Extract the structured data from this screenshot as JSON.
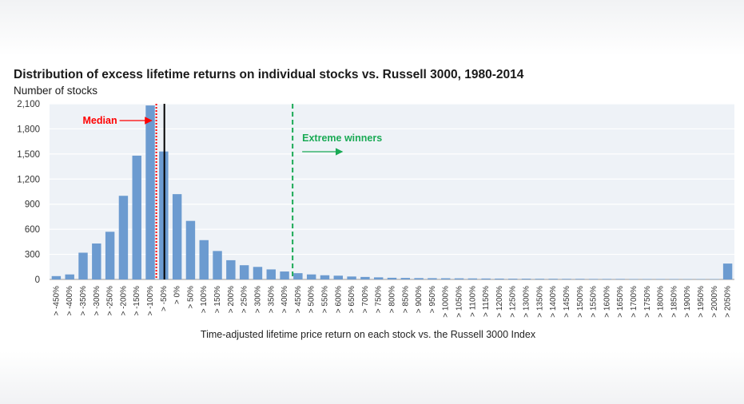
{
  "chart_data": {
    "type": "bar",
    "title": "Distribution of excess lifetime returns on individual stocks vs. Russell 3000, 1980-2014",
    "ylabel": "Number of stocks",
    "xlabel": "Time-adjusted lifetime price return on each stock vs. the Russell 3000 Index",
    "ylim": [
      0,
      2100
    ],
    "yticks": [
      0,
      300,
      600,
      900,
      1200,
      1500,
      1800,
      2100
    ],
    "ytick_labels": [
      "0",
      "300",
      "600",
      "900",
      "1,200",
      "1,500",
      "1,800",
      "2,100"
    ],
    "grid": true,
    "bar_color": "#6c9bd0",
    "plot_background": "#eef2f7",
    "categories": [
      "> -450%",
      "> -400%",
      "> -350%",
      "> -300%",
      "> -250%",
      "> -200%",
      "> -150%",
      "> -100%",
      "> -50%",
      "> 0%",
      "> 50%",
      "> 100%",
      "> 150%",
      "> 200%",
      "> 250%",
      "> 300%",
      "> 350%",
      "> 400%",
      "> 450%",
      "> 500%",
      "> 550%",
      "> 600%",
      "> 650%",
      "> 700%",
      "> 750%",
      "> 800%",
      "> 850%",
      "> 900%",
      "> 950%",
      "> 1000%",
      "> 1050%",
      "> 1100%",
      "> 1150%",
      "> 1200%",
      "> 1250%",
      "> 1300%",
      "> 1350%",
      "> 1400%",
      "> 1450%",
      "> 1500%",
      "> 1550%",
      "> 1600%",
      "> 1650%",
      "> 1700%",
      "> 1750%",
      "> 1800%",
      "> 1850%",
      "> 1900%",
      "> 1950%",
      "> 2000%",
      "> 2050%"
    ],
    "tick_labels": [
      "> -450%",
      "> -400%",
      "> -350%",
      "> -300%",
      "> -250%",
      "> -200%",
      "> -150%",
      "> -100%",
      "> -50%",
      "> 0%",
      "> 50%",
      "> 100%",
      "> 150%",
      "> 200%",
      "> 250%",
      "> 300%",
      "> 350%",
      "> 400%",
      "> 450%",
      "> 500%",
      "> 550%",
      "> 600%",
      "> 650%",
      "> 700%",
      "> 750%",
      "> 800%",
      "> 850%",
      "> 900%",
      "> 950%",
      "> 1000%",
      "> 1050%",
      "> 1100%",
      "> 1150%",
      "> 1200%",
      "> 1250%",
      "> 1300%",
      "> 1350%",
      "> 1400%",
      "> 1450%",
      "> 1500%",
      "> 1550%",
      "> 1600%",
      "> 1650%",
      "> 1700%",
      "> 1750%",
      "> 1800%",
      "> 1850%",
      "> 1900%",
      "> 1950%",
      "> 2000%",
      "> 2050%"
    ],
    "values": [
      40,
      60,
      320,
      430,
      570,
      1000,
      1480,
      2080,
      1530,
      1020,
      700,
      470,
      340,
      230,
      170,
      150,
      120,
      95,
      75,
      60,
      50,
      45,
      35,
      30,
      25,
      20,
      18,
      16,
      15,
      14,
      13,
      12,
      11,
      10,
      9,
      9,
      8,
      8,
      7,
      7,
      6,
      6,
      6,
      5,
      5,
      5,
      5,
      4,
      4,
      4,
      190
    ],
    "annotations": {
      "median": {
        "label": "Median",
        "color": "#ff0000",
        "category_index": 7.95
      },
      "zero_line": {
        "color": "#000000",
        "category_index": 8.55
      },
      "extreme_winners": {
        "label": "Extreme winners",
        "color": "#1aaa55",
        "category_index": 18.1
      }
    }
  }
}
